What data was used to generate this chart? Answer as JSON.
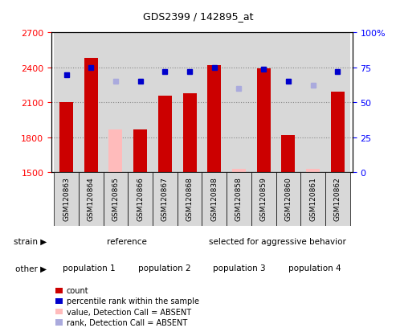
{
  "title": "GDS2399 / 142895_at",
  "samples": [
    "GSM120863",
    "GSM120864",
    "GSM120865",
    "GSM120866",
    "GSM120867",
    "GSM120868",
    "GSM120838",
    "GSM120858",
    "GSM120859",
    "GSM120860",
    "GSM120861",
    "GSM120862"
  ],
  "counts": [
    2100,
    2480,
    1870,
    1870,
    2160,
    2180,
    2420,
    1530,
    2390,
    1820,
    1530,
    2190
  ],
  "percentile_ranks": [
    70,
    75,
    65,
    65,
    72,
    72,
    75,
    60,
    74,
    65,
    62,
    72
  ],
  "absent": [
    false,
    false,
    true,
    false,
    false,
    false,
    false,
    true,
    false,
    false,
    true,
    false
  ],
  "ylim_left": [
    1500,
    2700
  ],
  "ylim_right": [
    0,
    100
  ],
  "yticks_left": [
    1500,
    1800,
    2100,
    2400,
    2700
  ],
  "yticks_right": [
    0,
    25,
    50,
    75,
    100
  ],
  "bar_color_present": "#cc0000",
  "bar_color_absent": "#ffbbbb",
  "rank_color_present": "#0000cc",
  "rank_color_absent": "#aaaadd",
  "col_bg": "#d8d8d8",
  "strain_groups": [
    {
      "label": "reference",
      "start": 0,
      "end": 6,
      "color": "#99ee99"
    },
    {
      "label": "selected for aggressive behavior",
      "start": 6,
      "end": 12,
      "color": "#44cc44"
    }
  ],
  "other_groups": [
    {
      "label": "population 1",
      "start": 0,
      "end": 3,
      "color": "#ee77ee"
    },
    {
      "label": "population 2",
      "start": 3,
      "end": 6,
      "color": "#cc44cc"
    },
    {
      "label": "population 3",
      "start": 6,
      "end": 9,
      "color": "#ee77ee"
    },
    {
      "label": "population 4",
      "start": 9,
      "end": 12,
      "color": "#cc44cc"
    }
  ],
  "legend_items": [
    {
      "label": "count",
      "color": "#cc0000"
    },
    {
      "label": "percentile rank within the sample",
      "color": "#0000cc"
    },
    {
      "label": "value, Detection Call = ABSENT",
      "color": "#ffbbbb"
    },
    {
      "label": "rank, Detection Call = ABSENT",
      "color": "#aaaadd"
    }
  ]
}
